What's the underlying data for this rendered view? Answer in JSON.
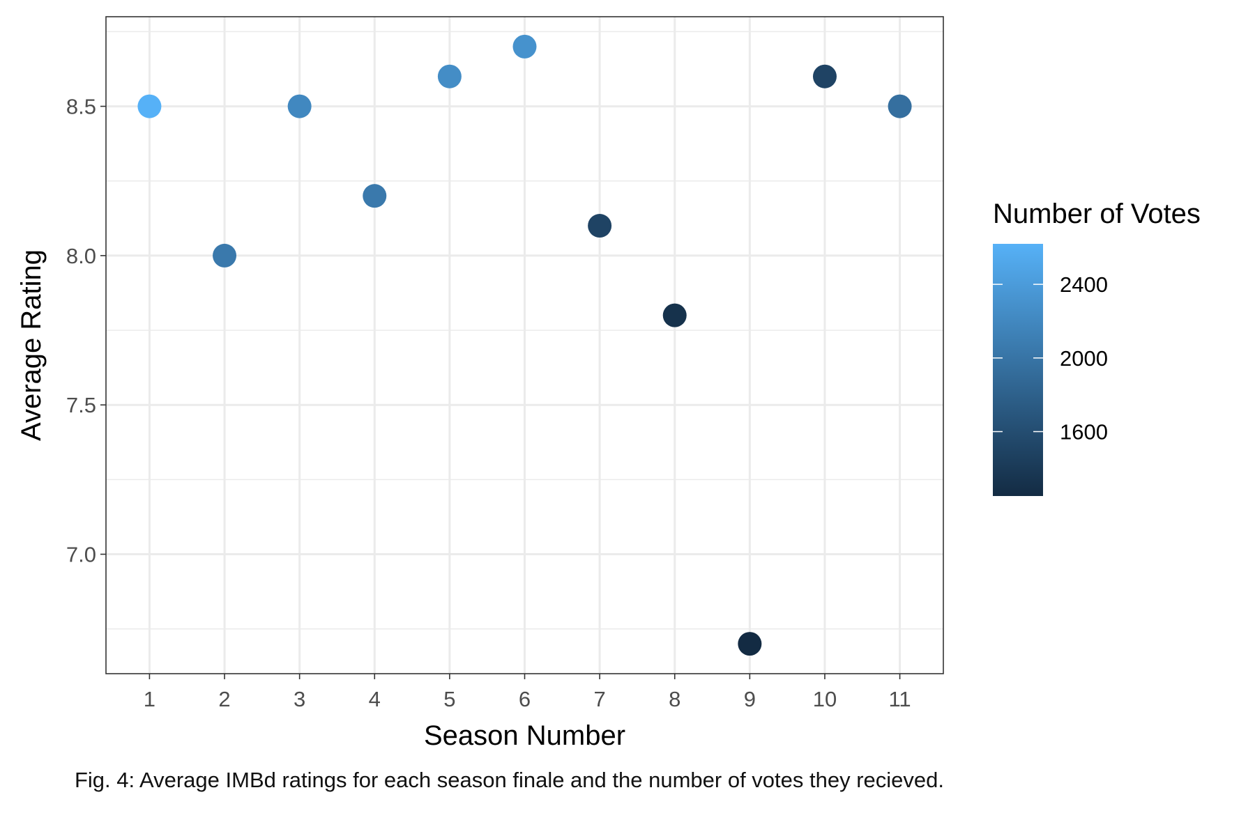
{
  "chart_data": {
    "type": "scatter",
    "xlabel": "Season Number",
    "ylabel": "Average Rating",
    "x_ticks": [
      "1",
      "2",
      "3",
      "4",
      "5",
      "6",
      "7",
      "8",
      "9",
      "10",
      "11"
    ],
    "y_ticks": [
      "7.0",
      "7.5",
      "8.0",
      "8.5"
    ],
    "xlim": [
      0.42,
      11.58
    ],
    "ylim": [
      6.6,
      8.8
    ],
    "grid": true,
    "legend_position": "right",
    "color_scale": {
      "title": "Number of Votes",
      "min": 1250,
      "max": 2620,
      "low_color": "#132b43",
      "high_color": "#56b1f7",
      "ticks": [
        "1600",
        "2000",
        "2400"
      ]
    },
    "points": [
      {
        "x": 1,
        "y": 8.5,
        "votes": 2620
      },
      {
        "x": 2,
        "y": 8.0,
        "votes": 2050
      },
      {
        "x": 3,
        "y": 8.5,
        "votes": 2200
      },
      {
        "x": 4,
        "y": 8.2,
        "votes": 2050
      },
      {
        "x": 5,
        "y": 8.6,
        "votes": 2250
      },
      {
        "x": 6,
        "y": 8.7,
        "votes": 2300
      },
      {
        "x": 7,
        "y": 8.1,
        "votes": 1500
      },
      {
        "x": 8,
        "y": 7.8,
        "votes": 1320
      },
      {
        "x": 9,
        "y": 6.7,
        "votes": 1250
      },
      {
        "x": 10,
        "y": 8.6,
        "votes": 1500
      },
      {
        "x": 11,
        "y": 8.5,
        "votes": 1950
      }
    ]
  },
  "caption": "Fig. 4: Average IMBd ratings for each season finale and the number of votes they recieved."
}
